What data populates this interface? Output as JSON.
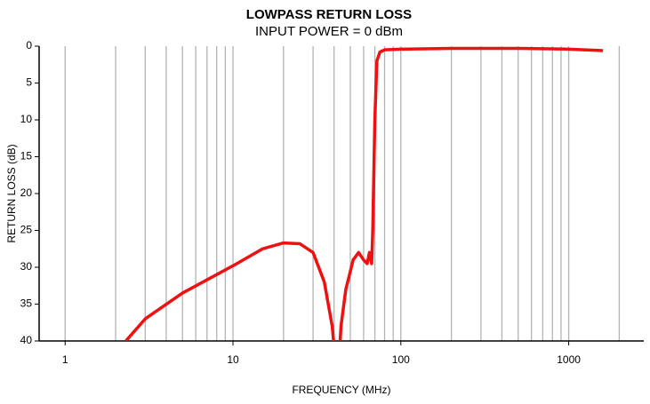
{
  "chart_data": {
    "type": "line",
    "title": "LOWPASS RETURN LOSS",
    "subtitle": "INPUT POWER = 0 dBm",
    "x_label": "FREQUENCY (MHz)",
    "y_label": "RETURN LOSS (dB)",
    "x_log": true,
    "y_inverted": true,
    "xlim": [
      0.7,
      2800
    ],
    "ylim": [
      0,
      40
    ],
    "xticks": [
      1,
      10,
      100,
      1000
    ],
    "yticks": [
      0,
      5,
      10,
      15,
      20,
      25,
      30,
      35,
      40
    ],
    "x_minor_grid": [
      2,
      3,
      4,
      5,
      6,
      7,
      8,
      9,
      20,
      30,
      40,
      50,
      60,
      70,
      80,
      90,
      200,
      300,
      400,
      500,
      600,
      700,
      800,
      900,
      2000
    ],
    "grid_color": "#b3b3b3",
    "series": [
      {
        "name": "RETURN LOSS",
        "color": "#ee1111",
        "x": [
          2.3,
          3,
          5,
          10,
          15,
          20,
          25,
          30,
          35,
          39,
          40.5,
          43,
          44,
          47,
          52,
          56,
          60,
          63,
          65,
          67,
          68,
          70,
          72,
          75,
          80,
          100,
          200,
          500,
          1000,
          1600
        ],
        "values": [
          40,
          37,
          33.5,
          29.8,
          27.5,
          26.7,
          26.8,
          28,
          32,
          38,
          42,
          42,
          38,
          33,
          29,
          28,
          29,
          29.5,
          28,
          29.5,
          25,
          10,
          2,
          0.8,
          0.5,
          0.4,
          0.3,
          0.3,
          0.4,
          0.6
        ]
      }
    ]
  }
}
